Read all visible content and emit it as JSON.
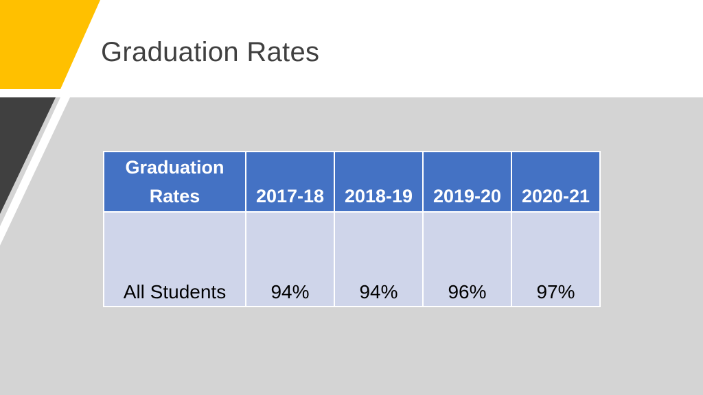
{
  "slide": {
    "title": "Graduation Rates",
    "colors": {
      "accent_yellow": "#FFC000",
      "dark_band": "#404040",
      "table_header": "#4472C4",
      "table_body": "#CFD5EA",
      "background": "#D4D4D4"
    }
  },
  "table": {
    "headers": [
      "Graduation Rates",
      "2017-18",
      "2018-19",
      "2019-20",
      "2020-21"
    ],
    "rows": [
      {
        "label": "All Students",
        "values": [
          "94%",
          "94%",
          "96%",
          "97%"
        ]
      }
    ]
  }
}
